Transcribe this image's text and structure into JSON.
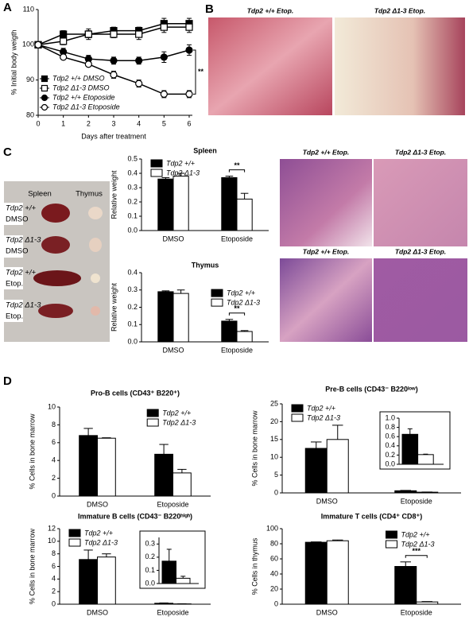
{
  "figure": {
    "panel_labels": [
      "A",
      "B",
      "C",
      "D"
    ],
    "histology_b": [
      "Tdp2 +/+ Etop.",
      "Tdp2 Δ1-3 Etop."
    ],
    "organ_columns": [
      "Spleen",
      "Thymus"
    ],
    "organ_rows": [
      [
        "Tdp2 +/+",
        "DMSO"
      ],
      [
        "Tdp2 Δ1-3",
        "DMSO"
      ],
      [
        "Tdp2 +/+",
        "Etop."
      ],
      [
        "Tdp2 Δ1-3",
        "Etop."
      ]
    ],
    "histology_c": [
      [
        "Tdp2 +/+ Etop.",
        "Tdp2 Δ1-3 Etop."
      ],
      [
        "Tdp2 +/+ Etop.",
        "Tdp2 Δ1-3 Etop."
      ]
    ]
  },
  "chart_data": [
    {
      "type": "line",
      "ylabel": "% Initial body weigth",
      "xlabel": "Days after treatment",
      "x": [
        0,
        1,
        2,
        3,
        4,
        5,
        6
      ],
      "xlim": [
        0,
        6
      ],
      "xticks": [
        0,
        1,
        2,
        3,
        4,
        5,
        6
      ],
      "ylim": [
        80,
        110
      ],
      "yticks": [
        80,
        90,
        100,
        110
      ],
      "legend": "lower left",
      "annotations": [
        "**"
      ],
      "series": [
        {
          "name": "Tdp2 +/+ DMSO",
          "color": "#000000",
          "fill": "#000000",
          "marker": "square",
          "values": [
            100,
            103,
            103,
            104,
            104,
            106,
            106
          ],
          "errors": [
            0,
            1,
            1.5,
            1,
            1,
            1.5,
            1.5
          ]
        },
        {
          "name": "Tdp2 Δ1-3 DMSO",
          "color": "#000000",
          "fill": "#ffffff",
          "marker": "square",
          "values": [
            100,
            101,
            103,
            103,
            103,
            105,
            105
          ],
          "errors": [
            0,
            1,
            1,
            1,
            1.5,
            1.5,
            1.5
          ]
        },
        {
          "name": "Tdp2 +/+ Etoposide",
          "color": "#000000",
          "fill": "#000000",
          "marker": "circle",
          "values": [
            100,
            98,
            96,
            95.5,
            95.5,
            96.5,
            98.5
          ],
          "errors": [
            0,
            1,
            1,
            1,
            1,
            1.5,
            1.5
          ]
        },
        {
          "name": "Tdp2 Δ1-3 Etoposide",
          "color": "#000000",
          "fill": "#ffffff",
          "marker": "circle",
          "values": [
            100,
            96.5,
            94.5,
            91.5,
            89,
            86,
            86
          ],
          "errors": [
            0,
            0.5,
            0.5,
            1,
            1,
            1,
            1
          ]
        }
      ]
    },
    {
      "type": "bar",
      "title": "Spleen",
      "ylabel": "Relative weight",
      "categories": [
        "DMSO",
        "Etoposide"
      ],
      "ylim": [
        0,
        0.5
      ],
      "yticks": [
        {
          "value": 0,
          "label": "0.0"
        },
        0.1,
        0.2,
        0.3,
        0.4,
        0.5
      ],
      "legend": "upper left",
      "annotations": [
        "**"
      ],
      "series": [
        {
          "name": "Tdp2 +/+",
          "color": "#000000",
          "values": [
            0.36,
            0.37
          ],
          "errors": [
            0.01,
            0.01
          ]
        },
        {
          "name": "Tdp2 Δ1-3",
          "color": "#ffffff",
          "values": [
            0.38,
            0.22
          ],
          "errors": [
            0.02,
            0.04
          ]
        }
      ]
    },
    {
      "type": "bar",
      "title": "Thymus",
      "ylabel": "Relative weight",
      "categories": [
        "DMSO",
        "Etoposide"
      ],
      "ylim": [
        0,
        0.4
      ],
      "yticks": [
        {
          "value": 0,
          "label": "0.0"
        },
        0.1,
        0.2,
        0.3,
        0.4
      ],
      "legend": "center right",
      "annotations": [
        "**"
      ],
      "series": [
        {
          "name": "Tdp2 +/+",
          "color": "#000000",
          "values": [
            0.29,
            0.12
          ],
          "errors": [
            0.005,
            0.01
          ]
        },
        {
          "name": "Tdp2 Δ1-3",
          "color": "#ffffff",
          "values": [
            0.28,
            0.06
          ],
          "errors": [
            0.02,
            0.005
          ]
        }
      ]
    },
    {
      "type": "bar",
      "title": "Pro-B cells (CD43⁺ B220⁺)",
      "ylabel": "% Cells in bone marrow",
      "categories": [
        "DMSO",
        "Etoposide"
      ],
      "ylim": [
        0,
        10
      ],
      "yticks": [
        0,
        2,
        4,
        6,
        8,
        10
      ],
      "legend": "upper right",
      "series": [
        {
          "name": "Tdp2 +/+",
          "color": "#000000",
          "values": [
            6.8,
            4.7
          ],
          "errors": [
            0.8,
            1.1
          ]
        },
        {
          "name": "Tdp2 Δ1-3",
          "color": "#ffffff",
          "values": [
            6.5,
            2.6
          ],
          "errors": [
            0.05,
            0.4
          ]
        }
      ]
    },
    {
      "type": "bar",
      "title": "Pre-B cells (CD43⁻ B220ˡᵒʷ)",
      "ylabel": "% Cells in bone marrow",
      "categories": [
        "DMSO",
        "Etoposide"
      ],
      "ylim": [
        0,
        25
      ],
      "yticks": [
        0,
        5,
        10,
        15,
        20,
        25
      ],
      "legend": "upper left",
      "series": [
        {
          "name": "Tdp2 +/+",
          "color": "#000000",
          "values": [
            12.5,
            0.6
          ],
          "errors": [
            1.8,
            0.1
          ]
        },
        {
          "name": "Tdp2 Δ1-3",
          "color": "#ffffff",
          "values": [
            15,
            0.2
          ],
          "errors": [
            4,
            0.05
          ]
        }
      ],
      "inset": {
        "ylim": [
          0,
          1
        ],
        "yticks": [
          {
            "value": 0,
            "label": "0.0"
          },
          0.2,
          0.4,
          0.6,
          0.8,
          {
            "value": 1,
            "label": "1.0"
          }
        ],
        "values": [
          0.65,
          0.21
        ],
        "errors": [
          0.12,
          0.01
        ]
      }
    },
    {
      "type": "bar",
      "title": "Immature B cells (CD43⁻ B220ʰⁱᵍʰ)",
      "ylabel": "% Cells in bone marrow",
      "categories": [
        "DMSO",
        "Etoposide"
      ],
      "ylim": [
        0,
        12
      ],
      "yticks": [
        0,
        2,
        4,
        6,
        8,
        10,
        12
      ],
      "legend": "upper left",
      "series": [
        {
          "name": "Tdp2 +/+",
          "color": "#000000",
          "values": [
            7.1,
            0.15
          ],
          "errors": [
            1.5,
            0.05
          ]
        },
        {
          "name": "Tdp2 Δ1-3",
          "color": "#ffffff",
          "values": [
            7.5,
            0.05
          ],
          "errors": [
            0.5,
            0.02
          ]
        }
      ],
      "inset": {
        "ylim": [
          0,
          0.35
        ],
        "yticks": [
          {
            "value": 0,
            "label": "0.0"
          },
          0.1,
          0.2,
          0.3
        ],
        "values": [
          0.17,
          0.04
        ],
        "errors": [
          0.09,
          0.015
        ]
      }
    },
    {
      "type": "bar",
      "title": "Immature T cells (CD4⁺ CD8⁺)",
      "ylabel": "% Cells in thymus",
      "categories": [
        "DMSO",
        "Etoposide"
      ],
      "ylim": [
        0,
        100
      ],
      "yticks": [
        0,
        20,
        40,
        60,
        80,
        100
      ],
      "legend": "upper right",
      "annotations": [
        "***"
      ],
      "series": [
        {
          "name": "Tdp2 +/+",
          "color": "#000000",
          "values": [
            82,
            50
          ],
          "errors": [
            0.5,
            6
          ]
        },
        {
          "name": "Tdp2 Δ1-3",
          "color": "#ffffff",
          "values": [
            84,
            3
          ],
          "errors": [
            1,
            0.5
          ]
        }
      ]
    }
  ]
}
